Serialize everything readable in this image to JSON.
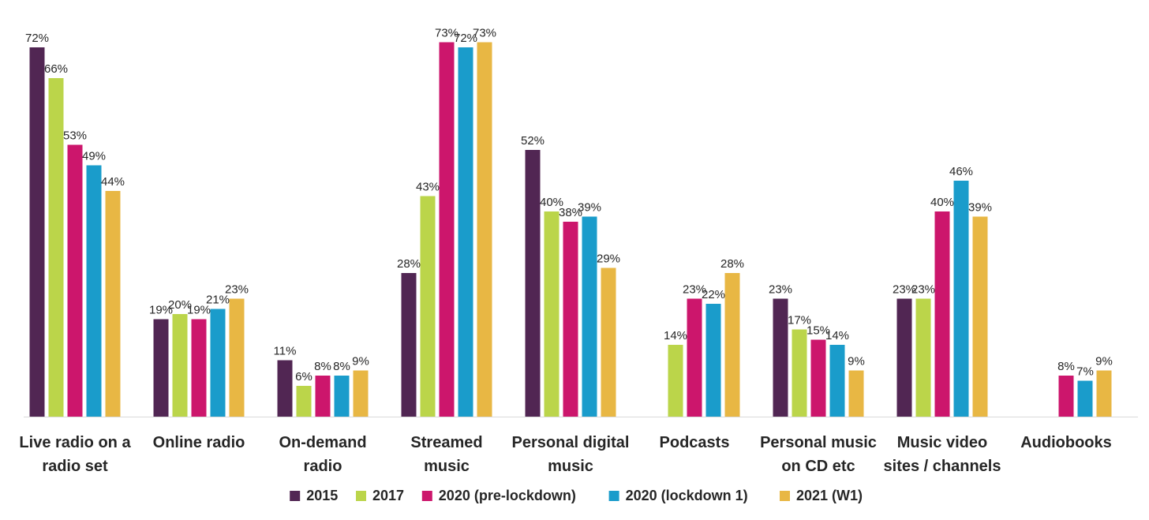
{
  "chart_data": {
    "type": "bar",
    "title": "",
    "xlabel": "",
    "ylabel": "",
    "ylim": [
      0,
      80
    ],
    "grid": false,
    "legend_position": "bottom",
    "categories": [
      [
        "Live radio on a",
        "radio set"
      ],
      [
        "Online radio"
      ],
      [
        "On-demand",
        "radio"
      ],
      [
        "Streamed",
        "music"
      ],
      [
        "Personal digital",
        "music"
      ],
      [
        "Podcasts"
      ],
      [
        "Personal music",
        "on CD etc"
      ],
      [
        "Music video",
        "sites / channels"
      ],
      [
        "Audiobooks"
      ]
    ],
    "series": [
      {
        "name": "2015",
        "color": "#512653",
        "values": [
          72,
          19,
          11,
          28,
          52,
          null,
          23,
          23,
          null
        ]
      },
      {
        "name": "2017",
        "color": "#bbd54a",
        "values": [
          66,
          20,
          6,
          43,
          40,
          14,
          17,
          23,
          null
        ]
      },
      {
        "name": "2020 (pre-lockdown)",
        "color": "#cc166c",
        "values": [
          53,
          19,
          8,
          73,
          38,
          23,
          15,
          40,
          8
        ]
      },
      {
        "name": "2020 (lockdown 1)",
        "color": "#1a9ccb",
        "values": [
          49,
          21,
          8,
          72,
          39,
          22,
          14,
          46,
          7
        ]
      },
      {
        "name": "2021 (W1)",
        "color": "#e8b744",
        "values": [
          44,
          23,
          9,
          73,
          29,
          28,
          9,
          39,
          9
        ]
      }
    ],
    "value_suffix": "%"
  }
}
